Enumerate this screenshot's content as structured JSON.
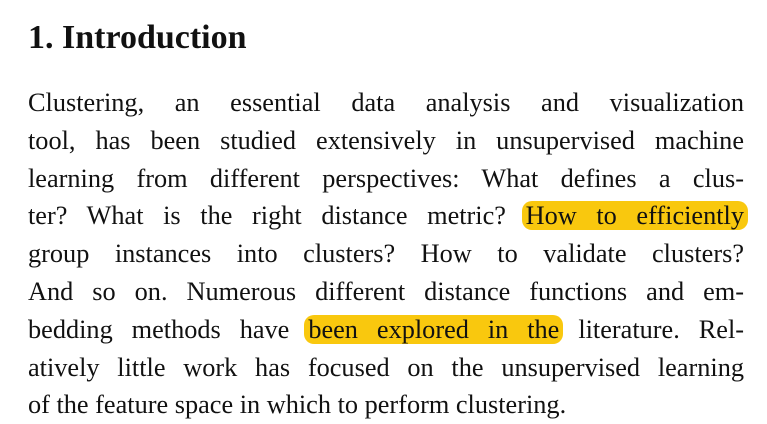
{
  "section": {
    "heading": "1. Introduction"
  },
  "paragraph": {
    "lines": [
      {
        "text": "Clustering, an essential data analysis and visualization"
      },
      {
        "text": "tool, has been studied extensively in unsupervised machine"
      },
      {
        "text": "learning from different perspectives: What defines a clus-"
      },
      {
        "before": "ter? What is the right distance metric?",
        "highlight": "How to efficiently",
        "after": ""
      },
      {
        "text": "group instances into clusters?  How to validate clusters?"
      },
      {
        "text": "And so on. Numerous different distance functions and em-"
      },
      {
        "before": "bedding methods have",
        "highlight": "been explored in the",
        "after": "literature. Rel-"
      },
      {
        "text": "atively little work has focused on the unsupervised learning"
      },
      {
        "text": "of the feature space in which to perform clustering."
      }
    ]
  },
  "colors": {
    "highlight": "#f9c80e",
    "text": "#111111",
    "background": "#ffffff"
  }
}
